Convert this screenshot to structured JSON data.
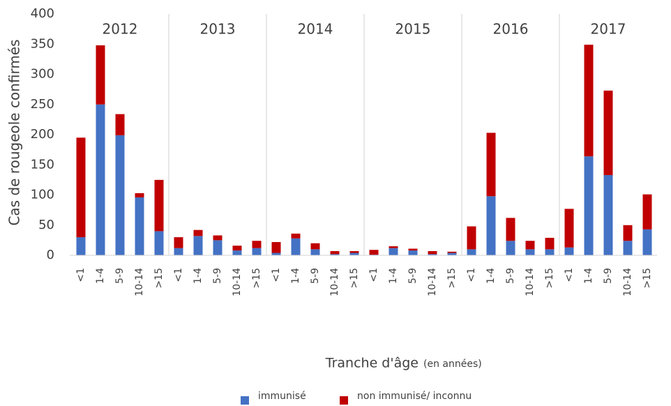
{
  "chart_data": {
    "type": "stacked_bar",
    "ylabel": "Cas de rougeole confirmés",
    "xlabel": "Tranche d'âge",
    "xlabel_note": "(en années)",
    "groups": [
      "2012",
      "2013",
      "2014",
      "2015",
      "2016",
      "2017"
    ],
    "categories": [
      "<1",
      "1-4",
      "5-9",
      "10-14",
      ">15",
      "<1",
      "1-4",
      "5-9",
      "10-14",
      ">15",
      "<1",
      "1-4",
      "5-9",
      "10-14",
      ">15",
      "<1",
      "1-4",
      "5-9",
      "10-14",
      ">15",
      "<1",
      "1-4",
      "5-9",
      "10-14",
      ">15",
      "<1",
      "1-4",
      "5-9",
      "10-14",
      ">15"
    ],
    "series": [
      {
        "name": "immunisé",
        "color": "#4472c4",
        "values": [
          30,
          250,
          199,
          96,
          40,
          12,
          32,
          25,
          8,
          12,
          4,
          28,
          10,
          2,
          4,
          1,
          12,
          8,
          2,
          4,
          10,
          98,
          24,
          10,
          10,
          13,
          164,
          133,
          24,
          43
        ]
      },
      {
        "name": "non immunisé/ inconnu",
        "color": "#c00000",
        "values": [
          165,
          98,
          35,
          7,
          85,
          18,
          10,
          8,
          8,
          12,
          18,
          8,
          10,
          5,
          3,
          8,
          3,
          3,
          5,
          2,
          38,
          105,
          38,
          14,
          19,
          64,
          185,
          140,
          26,
          58
        ]
      }
    ],
    "ylim": [
      0,
      400
    ],
    "yticks": [
      0,
      50,
      100,
      150,
      200,
      250,
      300,
      350,
      400
    ],
    "legend": "bottom"
  }
}
